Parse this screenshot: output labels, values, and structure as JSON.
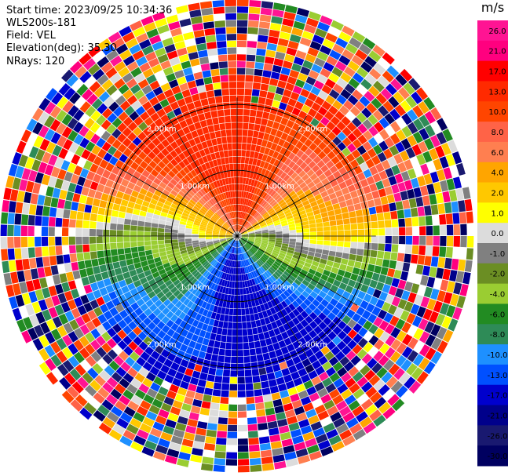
{
  "header": {
    "start_line": "Start time: 2023/09/25 10:34:36",
    "site": "WLS200s-181",
    "field": "Field: VEL",
    "elevation": "Elevation(deg): 35.30",
    "nrays": "NRays: 120"
  },
  "colorbar": {
    "unit": "m/s",
    "ticks": [
      "26.0",
      "21.0",
      "17.0",
      "13.0",
      "10.0",
      "8.0",
      "6.0",
      "4.0",
      "2.0",
      "1.0",
      "0.0",
      "-1.0",
      "-2.0",
      "-4.0",
      "-6.0",
      "-8.0",
      "-10.0",
      "-13.0",
      "-17.0",
      "-21.0",
      "-26.0",
      "-30.0"
    ],
    "colors": [
      "#ff1493",
      "#ff007f",
      "#ff0000",
      "#ff2a00",
      "#ff4500",
      "#ff6347",
      "#ff7f50",
      "#ffa500",
      "#ffc800",
      "#ffff00",
      "#dcdcdc",
      "#808080",
      "#6b8e23",
      "#9acd32",
      "#228b22",
      "#2e8b57",
      "#1e90ff",
      "#0050ff",
      "#0000cd",
      "#00008b",
      "#191970",
      "#000060"
    ]
  },
  "chart_data": {
    "type": "heatmap",
    "plot": "PPI",
    "nrays": 120,
    "elevation_deg": 35.3,
    "field": "VEL",
    "units": "m/s",
    "range_rings_km": [
      1.0,
      2.0
    ],
    "range_ring_labels": [
      "1.00km",
      "2.00km"
    ],
    "clean_region_max_km": 2.45,
    "pattern": "Clean dual-lobe velocity field inside ~2.4 km (positive/outbound toward north: orange-red; negative/inbound toward south: green-blue); noisy random velocities beyond."
  }
}
